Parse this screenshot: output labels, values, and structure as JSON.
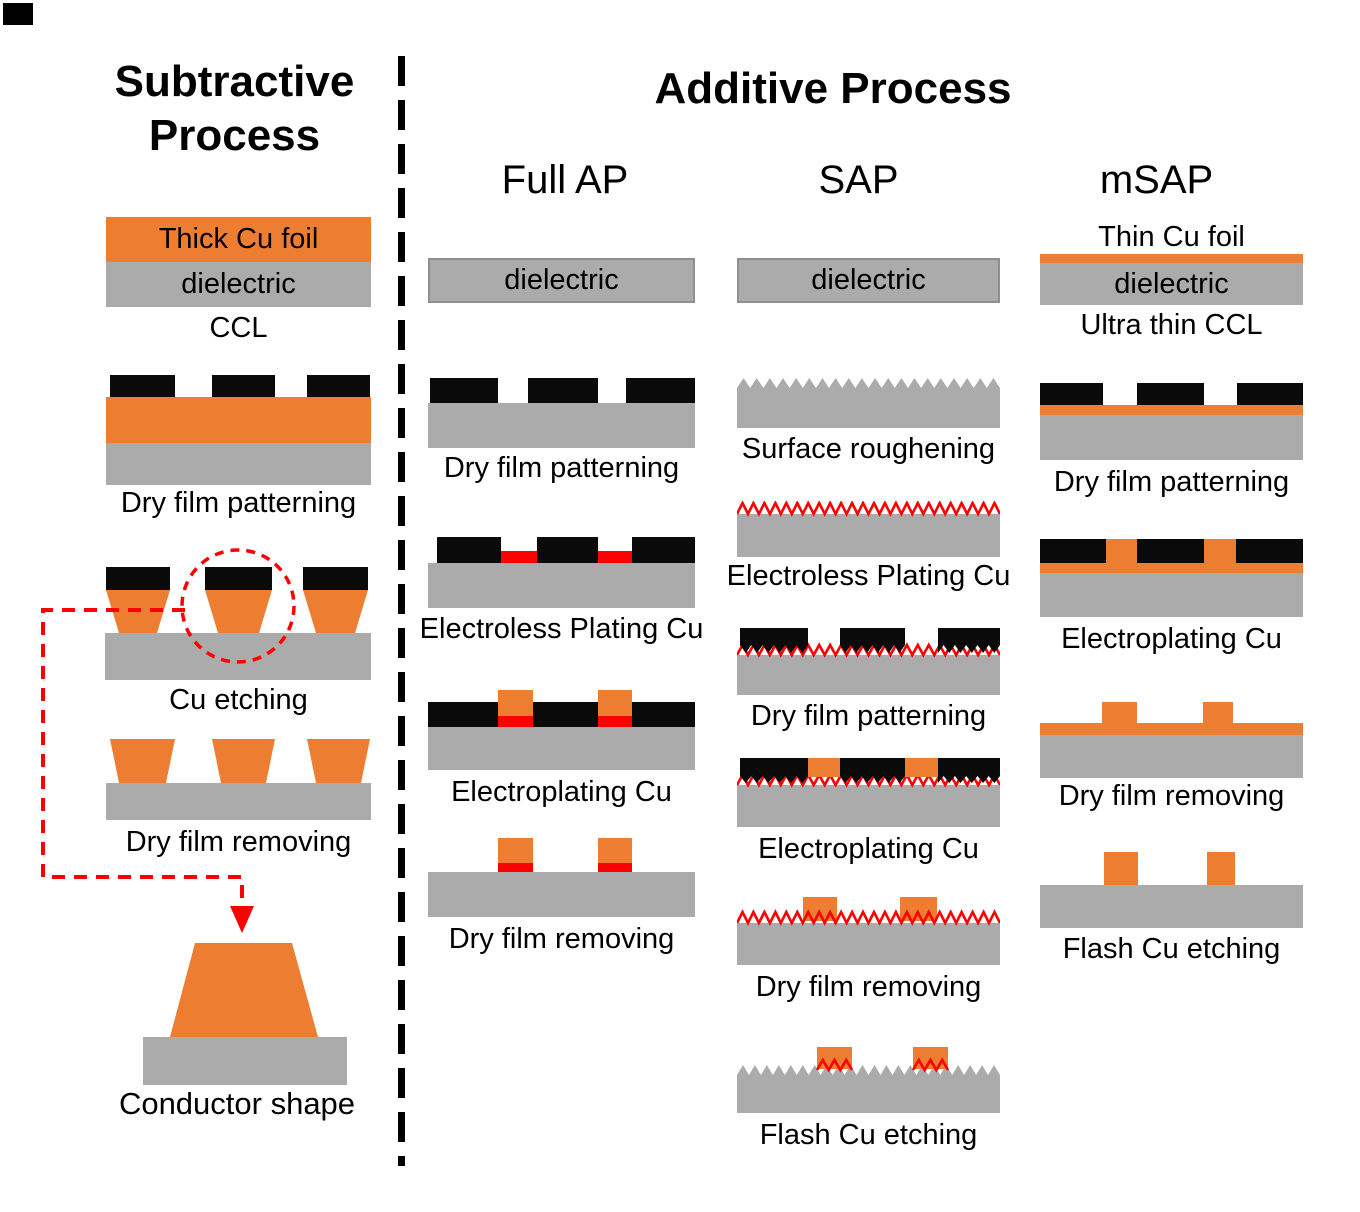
{
  "colors": {
    "copper": "#ED7D31",
    "dielectric_gray": "#ABABAB",
    "resist_black": "#0A0A0A",
    "seed_red": "#FF0000",
    "dielectric_border": "#8F8F8F"
  },
  "subtractive": {
    "title_line1": "Subtractive",
    "title_line2": "Process",
    "ccl": {
      "top_layer": "Thick Cu foil",
      "bottom_layer": "dielectric",
      "caption": "CCL"
    },
    "captions": [
      "Dry film patterning",
      "Cu etching",
      "Dry film removing",
      "Conductor shape"
    ]
  },
  "additive": {
    "title": "Additive Process",
    "full_ap": {
      "header": "Full AP",
      "dielectric_label": "dielectric",
      "captions": [
        "Dry film patterning",
        "Electroless Plating Cu",
        "Electroplating Cu",
        "Dry film removing"
      ]
    },
    "sap": {
      "header": "SAP",
      "dielectric_label": "dielectric",
      "captions": [
        "Surface roughening",
        "Electroless Plating Cu",
        "Dry film patterning",
        "Electroplating Cu",
        "Dry film removing",
        "Flash Cu etching"
      ]
    },
    "msap": {
      "header": "mSAP",
      "top_layer_label": "Thin Cu foil",
      "dielectric_label": "dielectric",
      "ccl_caption": "Ultra thin CCL",
      "captions": [
        "Dry film patterning",
        "Electroplating Cu",
        "Dry film removing",
        "Flash Cu etching"
      ]
    }
  }
}
